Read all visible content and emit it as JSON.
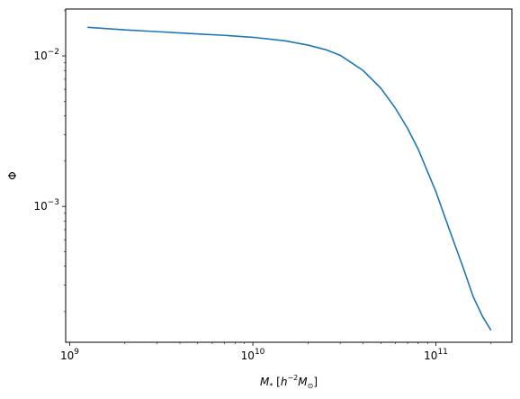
{
  "chart_data": {
    "type": "line",
    "xscale": "log",
    "yscale": "log",
    "xlim": [
      950000000,
      260000000000
    ],
    "ylim": [
      0.000125,
      0.0205
    ],
    "xlabel": "M_* [h^-2 M_⊙]",
    "ylabel": "Φ",
    "grid": false,
    "x_ticks": [
      {
        "base": "10",
        "exp": "9",
        "value": 1000000000
      },
      {
        "base": "10",
        "exp": "10",
        "value": 10000000000
      },
      {
        "base": "10",
        "exp": "11",
        "value": 100000000000
      }
    ],
    "y_ticks": [
      {
        "base": "10",
        "exp": "−3",
        "value": 0.001
      },
      {
        "base": "10",
        "exp": "−2",
        "value": 0.01
      }
    ],
    "series": [
      {
        "color": "#1f77b4",
        "x": [
          1250000000,
          2000000000,
          3000000000,
          5000000000,
          7000000000,
          10000000000,
          15000000000,
          20000000000,
          25000000000,
          30000000000,
          40000000000,
          50000000000,
          60000000000,
          70000000000,
          80000000000,
          100000000000,
          120000000000,
          140000000000,
          160000000000,
          180000000000,
          200000000000
        ],
        "y": [
          0.0155,
          0.0149,
          0.0145,
          0.014,
          0.0137,
          0.0133,
          0.0126,
          0.0118,
          0.011,
          0.0101,
          0.008,
          0.0061,
          0.0045,
          0.0033,
          0.0024,
          0.00125,
          0.00067,
          0.0004,
          0.00025,
          0.000185,
          0.00015
        ]
      }
    ]
  }
}
